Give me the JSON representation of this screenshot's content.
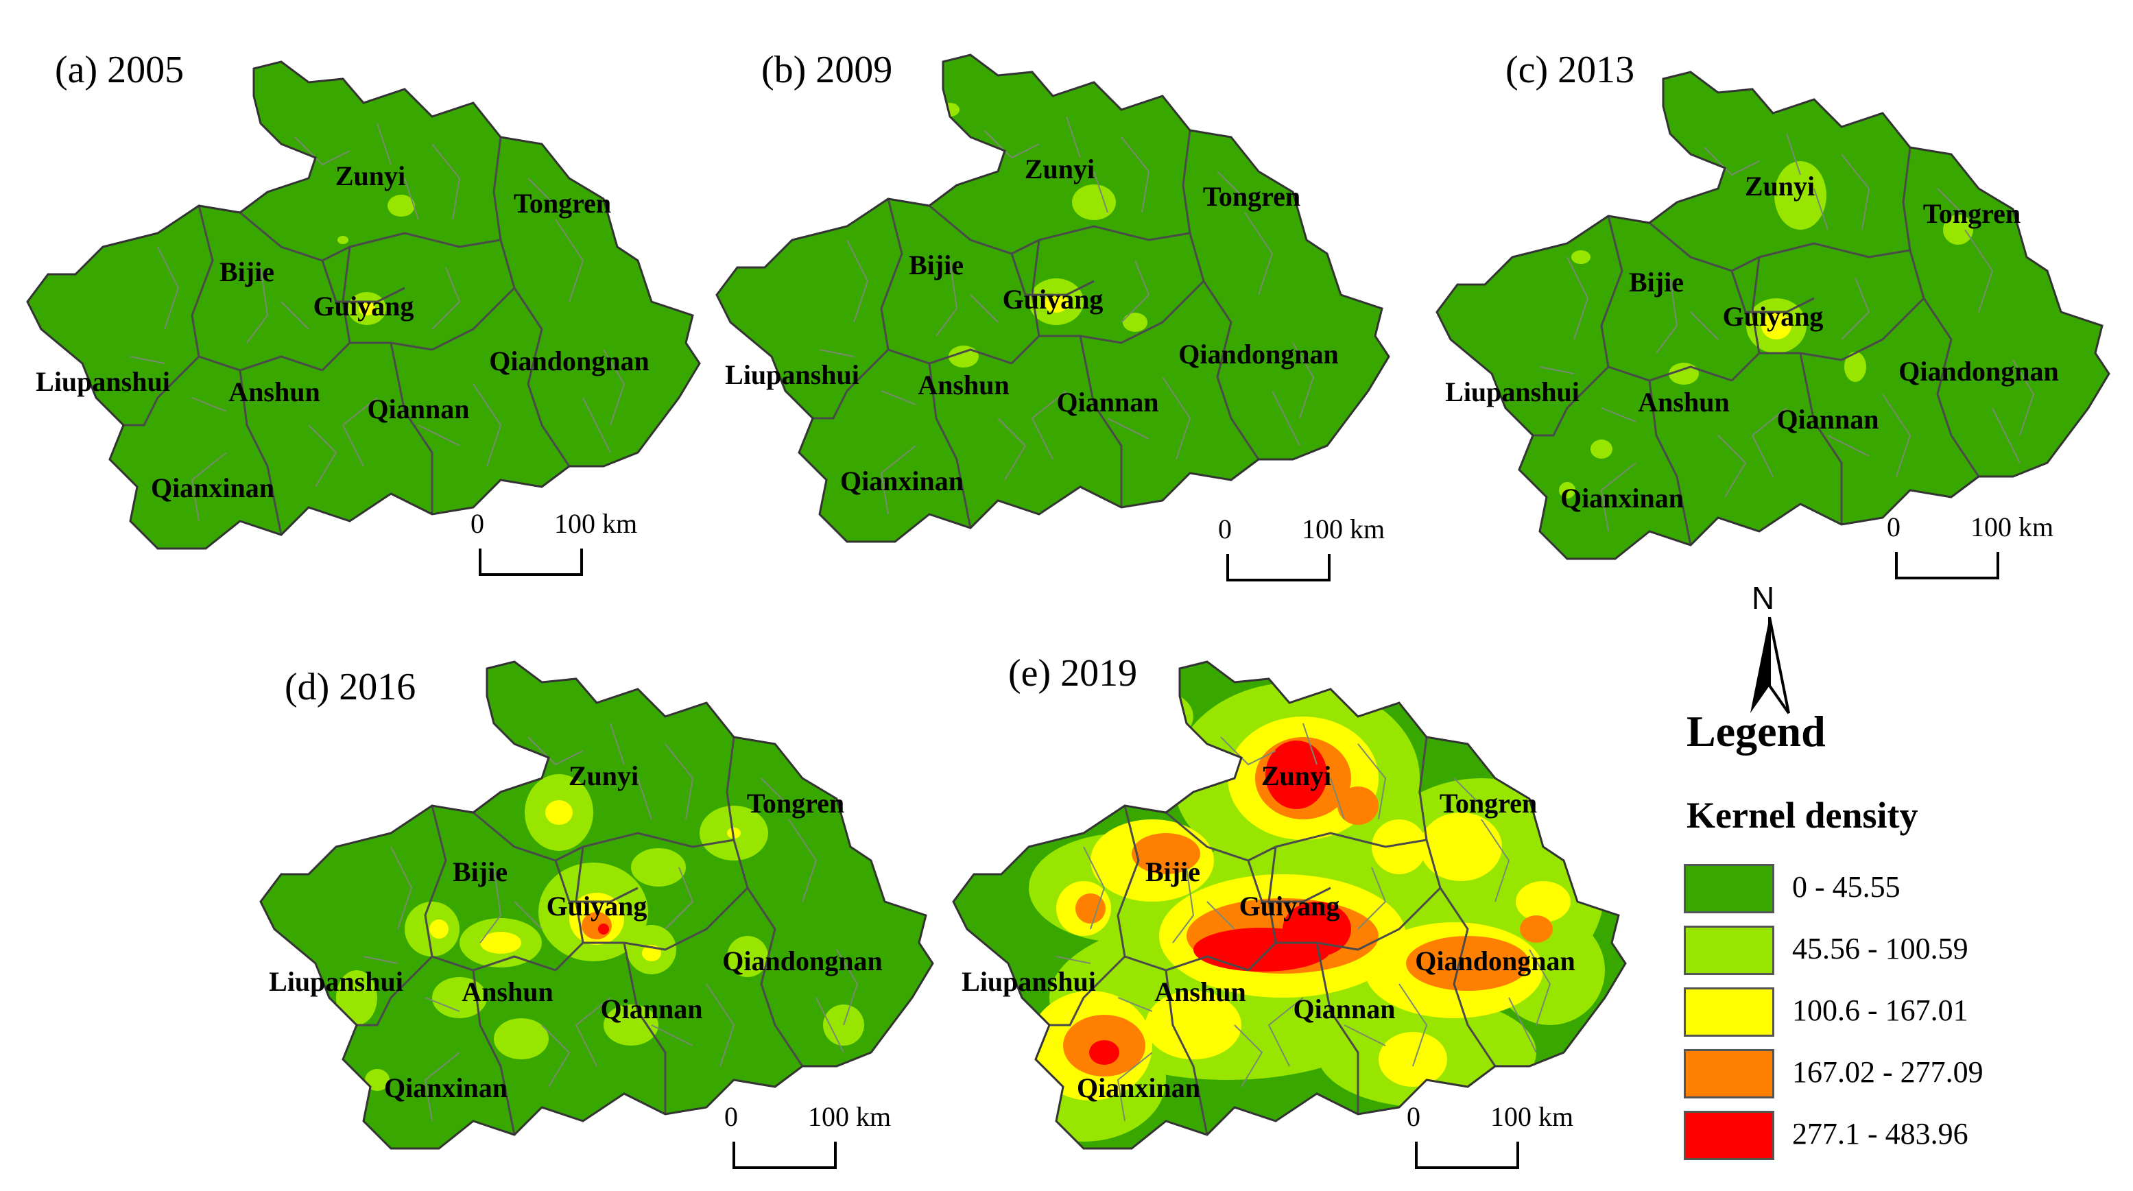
{
  "panels": [
    {
      "id": "a",
      "title": "(a) 2005",
      "level": 0
    },
    {
      "id": "b",
      "title": "(b) 2009",
      "level": 1
    },
    {
      "id": "c",
      "title": "(c) 2013",
      "level": 2
    },
    {
      "id": "d",
      "title": "(d) 2016",
      "level": 3
    },
    {
      "id": "e",
      "title": "(e) 2019",
      "level": 4
    }
  ],
  "regions": {
    "zunyi": "Zunyi",
    "tongren": "Tongren",
    "bijie": "Bijie",
    "guiyang": "Guiyang",
    "qiandongnan": "Qiandongnan",
    "liupanshui": "Liupanshui",
    "anshun": "Anshun",
    "qiannan": "Qiannan",
    "qianxinan": "Qianxinan"
  },
  "scale": {
    "zero": "0",
    "distance": "100 km"
  },
  "north_label": "N",
  "legend": {
    "title": "Legend",
    "subtitle": "Kernel density",
    "classes": [
      {
        "label": "0 - 45.55",
        "color": "#38a800"
      },
      {
        "label": "45.56 - 100.59",
        "color": "#98e600"
      },
      {
        "label": "100.6 - 167.01",
        "color": "#ffff00"
      },
      {
        "label": "167.02 - 277.09",
        "color": "#ff8000"
      },
      {
        "label": "277.1 - 483.96",
        "color": "#ff0000"
      }
    ]
  }
}
